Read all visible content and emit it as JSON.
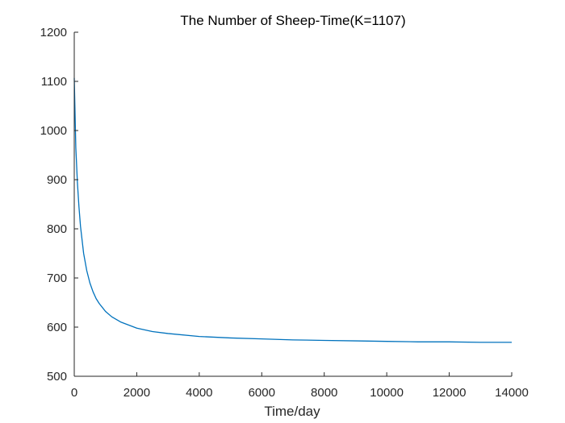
{
  "chart_data": {
    "type": "line",
    "title": "The Number of Sheep-Time(K=1107)",
    "xlabel": "Time/day",
    "ylabel": "",
    "xlim": [
      0,
      14000
    ],
    "ylim": [
      500,
      1200
    ],
    "xticks": [
      0,
      2000,
      4000,
      6000,
      8000,
      10000,
      12000,
      14000
    ],
    "yticks": [
      500,
      600,
      700,
      800,
      900,
      1000,
      1100,
      1200
    ],
    "grid": false,
    "series": [
      {
        "color": "#0072BD",
        "x": [
          0,
          50,
          100,
          150,
          200,
          300,
          400,
          500,
          600,
          700,
          800,
          1000,
          1200,
          1500,
          2000,
          2500,
          3000,
          4000,
          5000,
          6000,
          7000,
          8000,
          9000,
          10000,
          11000,
          12000,
          13000,
          14000
        ],
        "y": [
          1107,
          965,
          895,
          845,
          805,
          750,
          715,
          690,
          672,
          658,
          648,
          632,
          621,
          610,
          598,
          591,
          587,
          581,
          578,
          576,
          574,
          573,
          572,
          571,
          570,
          570,
          569,
          569
        ]
      }
    ]
  }
}
